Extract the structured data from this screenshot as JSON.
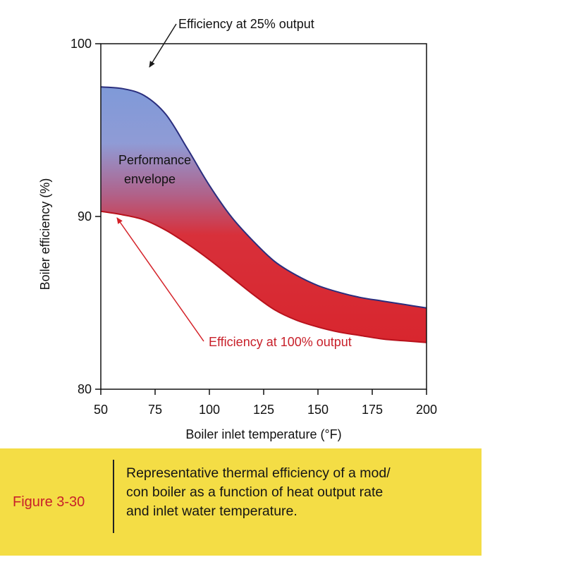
{
  "chart_data": {
    "type": "area",
    "title": "",
    "xlabel": "Boiler inlet temperature (°F)",
    "ylabel": "Boiler efficiency (%)",
    "xlim": [
      50,
      200
    ],
    "ylim": [
      80,
      100
    ],
    "xticks": [
      50,
      75,
      100,
      125,
      150,
      175,
      200
    ],
    "yticks": [
      80,
      90,
      100
    ],
    "x_tick_labels": [
      "50",
      "75",
      "100",
      "125",
      "150",
      "175",
      "200"
    ],
    "y_tick_labels": [
      "80",
      "90",
      "100"
    ],
    "series": [
      {
        "name": "Efficiency at 25% output",
        "color": "#2a2e7e",
        "x": [
          50,
          60,
          70,
          80,
          90,
          100,
          110,
          120,
          130,
          140,
          150,
          160,
          170,
          180,
          190,
          200
        ],
        "values": [
          97.5,
          97.4,
          97.0,
          95.9,
          93.9,
          91.8,
          90.0,
          88.6,
          87.4,
          86.6,
          86.0,
          85.6,
          85.3,
          85.1,
          84.9,
          84.7
        ]
      },
      {
        "name": "Efficiency at 100% output",
        "color": "#d42027",
        "x": [
          50,
          60,
          70,
          80,
          90,
          100,
          110,
          120,
          130,
          140,
          150,
          160,
          170,
          180,
          190,
          200
        ],
        "values": [
          90.3,
          90.1,
          89.8,
          89.2,
          88.4,
          87.5,
          86.5,
          85.5,
          84.6,
          84.0,
          83.6,
          83.3,
          83.1,
          82.9,
          82.8,
          82.7
        ]
      }
    ],
    "annotations": [
      "Efficiency at 25% output",
      "Efficiency at 100% output",
      "Performance envelope"
    ],
    "envelope_label": [
      "Performance",
      "envelope"
    ]
  },
  "caption": {
    "figure_label": "Figure 3-30",
    "lines": [
      "Representative thermal efficiency of a mod/",
      "con boiler as a function of heat output rate",
      "and inlet water temperature."
    ]
  },
  "colors": {
    "envelope_top": "#7f9ad8",
    "envelope_bottom": "#d8262e",
    "caption_bg": "#f4dd45",
    "figure_label": "#c8202a"
  }
}
